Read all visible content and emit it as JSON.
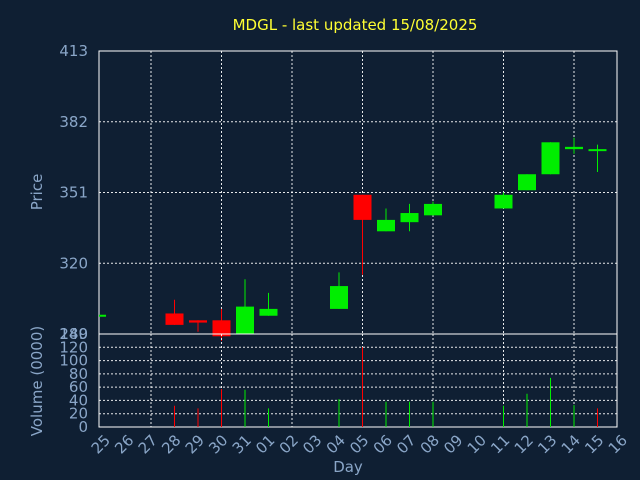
{
  "chart_data": [
    {
      "type": "candlestick",
      "title": "MDGL - last updated 15/08/2025",
      "ylabel": "Price",
      "ylim": [
        289,
        413
      ],
      "yticks": [
        "413",
        "382",
        "351",
        "320",
        "289"
      ],
      "grid": true,
      "colors": {
        "up": "#00ee00",
        "down": "#ff0000",
        "title": "#ffff33",
        "axis_text": "#8aa6c8",
        "background": "#0f1f33"
      },
      "categories": [
        "25",
        "26",
        "27",
        "28",
        "29",
        "30",
        "31",
        "01",
        "02",
        "03",
        "04",
        "05",
        "06",
        "07",
        "08",
        "09",
        "10",
        "11",
        "12",
        "13",
        "14",
        "15",
        "16"
      ],
      "candles": [
        {
          "day": "25",
          "open": 297,
          "close": 297,
          "high": 297,
          "low": 297
        },
        {
          "day": "28",
          "open": 298,
          "close": 293,
          "high": 304,
          "low": 293
        },
        {
          "day": "29",
          "open": 295,
          "close": 294,
          "high": 295,
          "low": 290
        },
        {
          "day": "30",
          "open": 295,
          "close": 288,
          "high": 300,
          "low": 286
        },
        {
          "day": "31",
          "open": 289,
          "close": 301,
          "high": 313,
          "low": 289
        },
        {
          "day": "01",
          "open": 297,
          "close": 300,
          "high": 307,
          "low": 297
        },
        {
          "day": "04",
          "open": 300,
          "close": 310,
          "high": 316,
          "low": 300
        },
        {
          "day": "05",
          "open": 350,
          "close": 339,
          "high": 350,
          "low": 315
        },
        {
          "day": "06",
          "open": 334,
          "close": 339,
          "high": 344,
          "low": 334
        },
        {
          "day": "07",
          "open": 338,
          "close": 342,
          "high": 346,
          "low": 334
        },
        {
          "day": "08",
          "open": 341,
          "close": 346,
          "high": 347,
          "low": 341
        },
        {
          "day": "11",
          "open": 344,
          "close": 350,
          "high": 351,
          "low": 344
        },
        {
          "day": "12",
          "open": 352,
          "close": 359,
          "high": 359,
          "low": 352
        },
        {
          "day": "13",
          "open": 359,
          "close": 373,
          "high": 373,
          "low": 359
        },
        {
          "day": "14",
          "open": 370,
          "close": 371,
          "high": 375,
          "low": 368
        },
        {
          "day": "15",
          "open": 370,
          "close": 370,
          "high": 372,
          "low": 360
        }
      ]
    },
    {
      "type": "bar",
      "ylabel": "Volume (0000)",
      "xlabel": "Day",
      "ylim": [
        0,
        140
      ],
      "yticks": [
        "140",
        "120",
        "100",
        "80",
        "60",
        "40",
        "20",
        "0"
      ],
      "grid": true,
      "categories": [
        "25",
        "26",
        "27",
        "28",
        "29",
        "30",
        "31",
        "01",
        "02",
        "03",
        "04",
        "05",
        "06",
        "07",
        "08",
        "09",
        "10",
        "11",
        "12",
        "13",
        "14",
        "15",
        "16"
      ],
      "bars": [
        {
          "day": "28",
          "value": 32,
          "direction": "down"
        },
        {
          "day": "29",
          "value": 28,
          "direction": "down"
        },
        {
          "day": "30",
          "value": 57,
          "direction": "down"
        },
        {
          "day": "31",
          "value": 56,
          "direction": "up"
        },
        {
          "day": "01",
          "value": 28,
          "direction": "up"
        },
        {
          "day": "04",
          "value": 42,
          "direction": "up"
        },
        {
          "day": "05",
          "value": 120,
          "direction": "down"
        },
        {
          "day": "06",
          "value": 38,
          "direction": "up"
        },
        {
          "day": "07",
          "value": 38,
          "direction": "up"
        },
        {
          "day": "08",
          "value": 38,
          "direction": "up"
        },
        {
          "day": "11",
          "value": 32,
          "direction": "up"
        },
        {
          "day": "12",
          "value": 50,
          "direction": "up"
        },
        {
          "day": "13",
          "value": 74,
          "direction": "up"
        },
        {
          "day": "14",
          "value": 33,
          "direction": "up"
        },
        {
          "day": "15",
          "value": 28,
          "direction": "down"
        }
      ]
    }
  ]
}
